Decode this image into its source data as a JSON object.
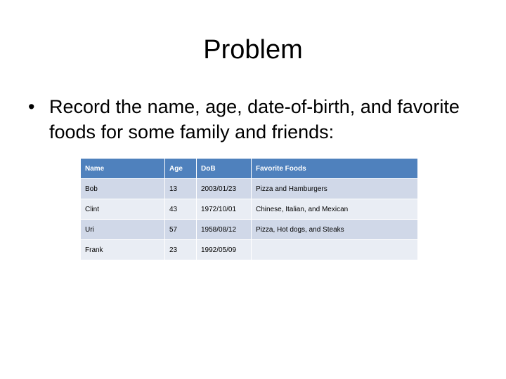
{
  "slide": {
    "title": "Problem",
    "bullet_symbol": "•",
    "bullet_text": "Record the name, age, date-of-birth, and favorite foods for some family and friends:"
  },
  "table": {
    "headers": [
      "Name",
      "Age",
      "DoB",
      "Favorite Foods"
    ],
    "rows": [
      [
        "Bob",
        "13",
        "2003/01/23",
        "Pizza and Hamburgers"
      ],
      [
        "Clint",
        "43",
        "1972/10/01",
        "Chinese, Italian, and Mexican"
      ],
      [
        "Uri",
        "57",
        "1958/08/12",
        "Pizza, Hot dogs, and Steaks"
      ],
      [
        "Frank",
        "23",
        "1992/05/09",
        ""
      ]
    ]
  },
  "colors": {
    "header_background": "#4f81bd",
    "row_band_dark": "#d0d8e8",
    "row_band_light": "#e9edf4"
  }
}
